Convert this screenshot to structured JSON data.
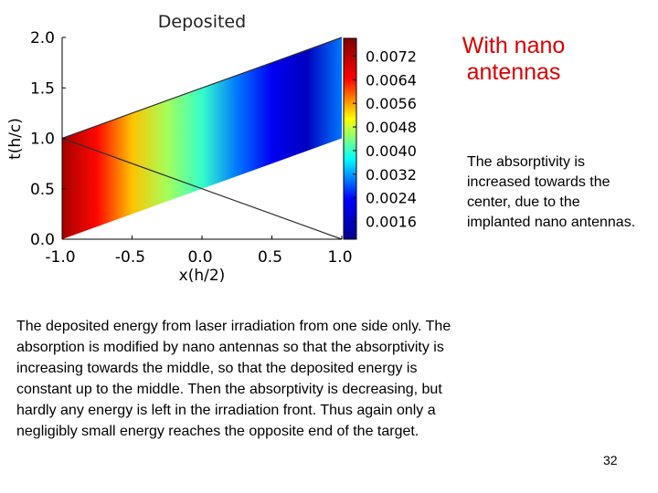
{
  "slide": {
    "heading": "With nano antennas",
    "side_note": "The absorptivity is increased towards the center, due to the implanted nano antennas.",
    "body_text": "The deposited energy from laser irradiation from one side only. The absorption is modified by nano antennas so that the absorptivity is increasing towards the middle, so that the deposited energy is constant up to the middle. Then the absorptivity is decreasing, but hardly any energy is left in the irradiation front. Thus again only a negligibly small energy reaches the opposite end of the target.",
    "page_number": "32"
  },
  "chart_data": {
    "type": "heatmap",
    "title": "Deposited",
    "xlabel": "x(h/2)",
    "ylabel": "t(h/c)",
    "xlim": [
      -1.0,
      1.0
    ],
    "ylim": [
      0.0,
      2.0
    ],
    "xticks": [
      "-1.0",
      "-0.5",
      "0.0",
      "0.5",
      "1.0"
    ],
    "yticks": [
      "0.0",
      "0.5",
      "1.0",
      "1.5",
      "2.0"
    ],
    "colorbar": {
      "range": [
        0.001,
        0.0078
      ],
      "ticks": [
        "0.0016",
        "0.0024",
        "0.0032",
        "0.0040",
        "0.0048",
        "0.0056",
        "0.0064",
        "0.0072"
      ],
      "colors": [
        "#00008f",
        "#0000ff",
        "#00ffff",
        "#ffff00",
        "#ff0000",
        "#800000"
      ]
    },
    "region": {
      "x_left": -1.0,
      "x_right": 1.0,
      "t_bottom_left": 0.0,
      "t_top_left": 1.0,
      "t_bottom_right": 1.0,
      "t_top_right": 2.0
    },
    "field_profile": {
      "x": [
        -1.0,
        -0.75,
        -0.5,
        -0.25,
        0.0,
        0.25,
        0.5,
        0.75,
        1.0
      ],
      "values": [
        0.0074,
        0.0064,
        0.0054,
        0.0046,
        0.004,
        0.003,
        0.0022,
        0.0016,
        0.003
      ]
    },
    "lines": [
      {
        "x": [
          -1.0,
          1.0
        ],
        "t": [
          1.0,
          0.0
        ]
      },
      {
        "x": [
          -1.0,
          1.0
        ],
        "t": [
          1.0,
          2.0
        ]
      }
    ]
  }
}
